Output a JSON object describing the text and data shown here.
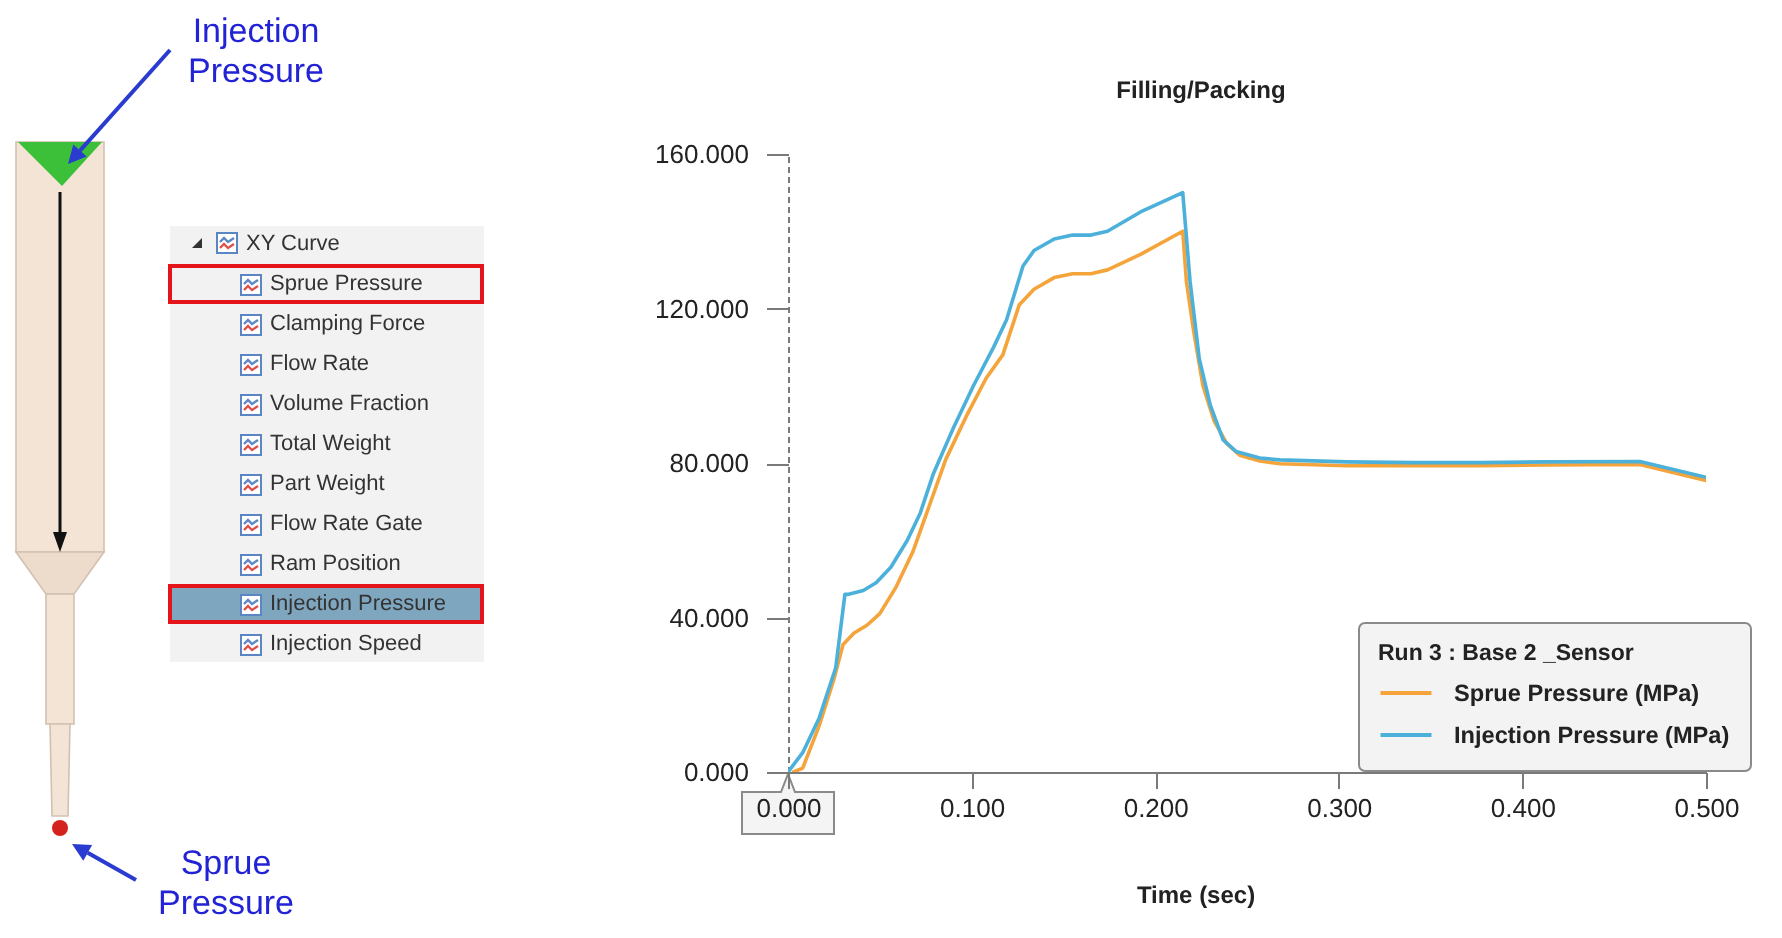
{
  "chart_data": [
    {
      "type": "other",
      "annotations": [
        "Injection Pressure",
        "Sprue Pressure"
      ]
    },
    {
      "type": "other",
      "title": "XY Curve",
      "annotations": [
        "Sprue Pressure",
        "Clamping Force",
        "Flow Rate",
        "Volume Fraction",
        "Total Weight",
        "Part Weight",
        "Flow Rate Gate",
        "Ram Position",
        "Injection Pressure",
        "Injection Speed"
      ]
    },
    {
      "type": "line",
      "title": "Filling/Packing",
      "xlabel": "Time (sec)",
      "legend_title": "Run 3 : Base 2 _Sensor",
      "legend": "bottom right",
      "xlim": [
        0,
        0.5
      ],
      "ylim": [
        0,
        160
      ],
      "xticks": [
        {
          "value": 0,
          "label": "0.000"
        },
        {
          "value": 0.1,
          "label": "0.100"
        },
        {
          "value": 0.2,
          "label": "0.200"
        },
        {
          "value": 0.3,
          "label": "0.300"
        },
        {
          "value": 0.4,
          "label": "0.400"
        },
        {
          "value": 0.5,
          "label": "0.500"
        }
      ],
      "yticks": [
        {
          "value": 0,
          "label": "0.000"
        },
        {
          "value": 40,
          "label": "40.000"
        },
        {
          "value": 80,
          "label": "80.000"
        },
        {
          "value": 120,
          "label": "120.000"
        },
        {
          "value": 160,
          "label": "160.000"
        }
      ],
      "series": [
        {
          "name": "Sprue Pressure (MPa)",
          "color": "#f4a43a",
          "x": [
            0.003,
            0.008,
            0.017,
            0.025,
            0.03,
            0.036,
            0.043,
            0.05,
            0.059,
            0.068,
            0.077,
            0.086,
            0.097,
            0.108,
            0.117,
            0.126,
            0.134,
            0.145,
            0.155,
            0.165,
            0.174,
            0.192,
            0.215,
            0.217,
            0.221,
            0.226,
            0.232,
            0.239,
            0.246,
            0.257,
            0.268,
            0.304,
            0.341,
            0.377,
            0.413,
            0.464,
            0.5
          ],
          "values": [
            0,
            1,
            12,
            24,
            33,
            36,
            38,
            41,
            48,
            57,
            69,
            81,
            92,
            102,
            108,
            121,
            125,
            128,
            129,
            129,
            130,
            134,
            140,
            127,
            114,
            100,
            91,
            85,
            82,
            80.5,
            79.8,
            79.3,
            79.3,
            79.3,
            79.5,
            79.6,
            75.5
          ]
        },
        {
          "name": "Injection Pressure (MPa)",
          "color": "#4cb1da",
          "x": [
            0,
            0.008,
            0.017,
            0.026,
            0.031,
            0.033,
            0.041,
            0.048,
            0.056,
            0.065,
            0.072,
            0.079,
            0.09,
            0.101,
            0.112,
            0.119,
            0.128,
            0.134,
            0.145,
            0.155,
            0.165,
            0.174,
            0.192,
            0.215,
            0.219,
            0.224,
            0.23,
            0.237,
            0.244,
            0.257,
            0.268,
            0.304,
            0.341,
            0.377,
            0.413,
            0.464,
            0.5
          ],
          "values": [
            0,
            5,
            14,
            27,
            46,
            46,
            47,
            49,
            53,
            60,
            67,
            77,
            89,
            100,
            110,
            117,
            131,
            135,
            138,
            139,
            139,
            140,
            145,
            150,
            127,
            107,
            95,
            86,
            83,
            81.3,
            80.8,
            80.3,
            80.1,
            80.1,
            80.3,
            80.4,
            76.3
          ]
        }
      ]
    }
  ]
}
